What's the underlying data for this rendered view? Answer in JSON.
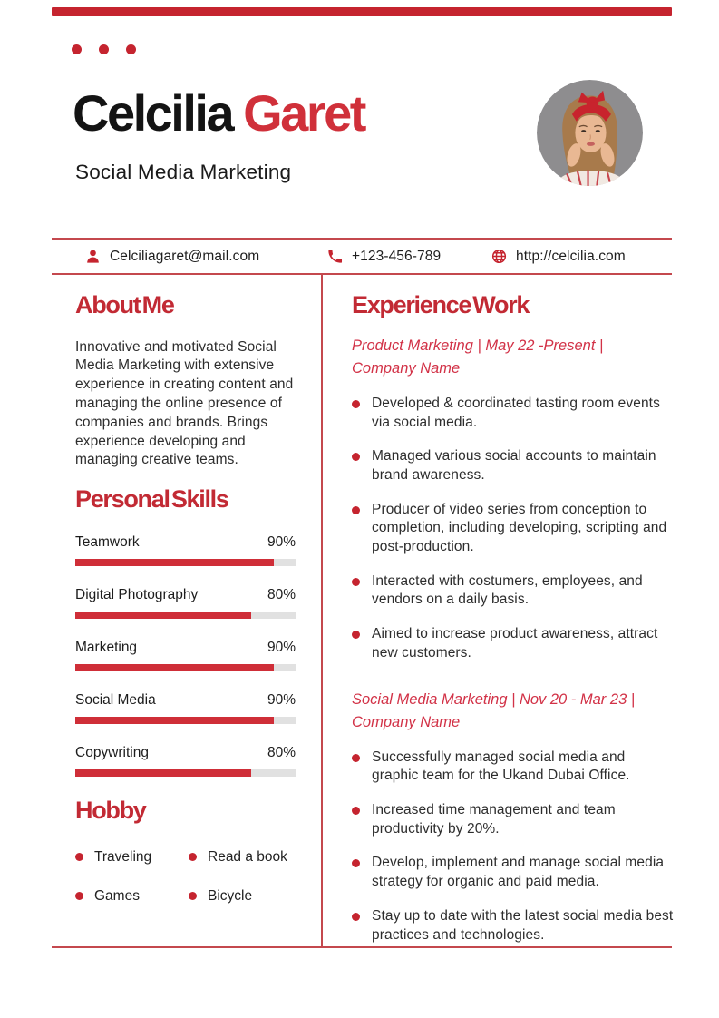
{
  "colors": {
    "accent": "#c5242f",
    "name_red": "#d0303a",
    "heading_red": "#c22a34",
    "italic_red": "#d23247",
    "line": "#c4484e",
    "bar_track": "#e1e1e1",
    "skill_fill": "#cf2e38"
  },
  "header": {
    "first_name": "Celcilia",
    "last_name": "Garet",
    "subtitle": "Social Media Marketing",
    "photo_alt": "Portrait photo of a woman with long light-brown hair, red knotted headband, hands on cheeks, gray background"
  },
  "contact": {
    "items": [
      {
        "icon": "person-icon",
        "text": "Celciliagaret@mail.com"
      },
      {
        "icon": "phone-icon",
        "text": "+123-456-789"
      },
      {
        "icon": "globe-icon",
        "text": "http://celcilia.com"
      }
    ]
  },
  "about": {
    "title": "About Me",
    "body": "Innovative and motivated Social Media Marketing with extensive experience in creating content and managing the online presence of companies and brands. Brings experience developing and managing creative teams."
  },
  "skills": {
    "title": "Personal Skills",
    "items": [
      {
        "label": "Teamwork",
        "percent_label": "90%",
        "value": 90
      },
      {
        "label": "Digital Photography",
        "percent_label": "80%",
        "value": 80
      },
      {
        "label": "Marketing",
        "percent_label": "90%",
        "value": 90
      },
      {
        "label": "Social Media",
        "percent_label": "90%",
        "value": 90
      },
      {
        "label": "Copywriting",
        "percent_label": "80%",
        "value": 80
      }
    ]
  },
  "hobby": {
    "title": "Hobby",
    "items": [
      "Traveling",
      "Read a book",
      "Games",
      "Bicycle"
    ]
  },
  "experience": {
    "title": "Experience Work",
    "jobs": [
      {
        "heading_lines": [
          "Product Marketing | May 22 -Present |",
          "Company Name"
        ],
        "bullets": [
          "Developed & coordinated tasting room events via social media.",
          "Managed various social accounts to maintain brand awareness.",
          "Producer of video series from conception to completion, including developing, scripting and post-production.",
          "Interacted with costumers, employees, and vendors on a daily basis.",
          "Aimed to increase product awareness, attract new customers."
        ]
      },
      {
        "heading_lines": [
          "Social Media Marketing | Nov 20 - Mar 23 |",
          "Company Name"
        ],
        "bullets": [
          "Successfully managed social media and graphic team for the Ukand Dubai Office.",
          "Increased time management and team productivity by 20%.",
          "Develop, implement and manage social media strategy for organic and paid media.",
          "Stay up to date with the latest social media best practices and technologies."
        ]
      }
    ]
  }
}
